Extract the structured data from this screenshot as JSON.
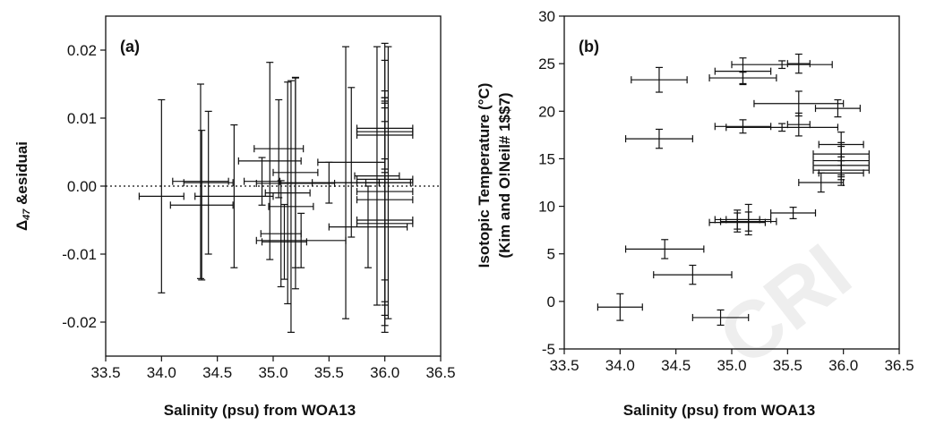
{
  "watermark": "CRI",
  "chart_data": [
    {
      "type": "scatter",
      "panel_label": "(a)",
      "xlabel": "Salinity (psu) from WOA13",
      "ylabel_symbol": "Δ",
      "ylabel_sub": "47",
      "ylabel_rest": " &esiduai",
      "xlim": [
        33.5,
        36.5
      ],
      "ylim": [
        -0.025,
        0.025
      ],
      "xticks": [
        33.5,
        34.0,
        34.5,
        35.0,
        35.5,
        36.0,
        36.5
      ],
      "xtick_labels": [
        "33.5",
        "34.0",
        "34.5",
        "35.0",
        "35.5",
        "36.0",
        "36.5"
      ],
      "yticks": [
        0.02,
        0.01,
        0.0,
        -0.01,
        -0.02
      ],
      "ytick_labels": [
        "0.02",
        "0.01",
        "0.00",
        "-0.01",
        "-0.02"
      ],
      "zero_line": true,
      "points": [
        {
          "x": 34.0,
          "y": -0.0015,
          "xerr": 0.2,
          "yerr": 0.0142
        },
        {
          "x": 34.35,
          "y": 0.0007,
          "xerr": 0.25,
          "yerr": 0.0143
        },
        {
          "x": 34.36,
          "y": -0.0028,
          "xerr": 0.28,
          "yerr": 0.011
        },
        {
          "x": 34.42,
          "y": 0.0005,
          "xerr": 0.22,
          "yerr": 0.0105
        },
        {
          "x": 34.65,
          "y": -0.0015,
          "xerr": 0.35,
          "yerr": 0.0105
        },
        {
          "x": 34.9,
          "y": 0.0007,
          "xerr": 0.16,
          "yerr": 0.0035
        },
        {
          "x": 34.97,
          "y": 0.0037,
          "xerr": 0.28,
          "yerr": 0.0145
        },
        {
          "x": 35.05,
          "y": 0.0055,
          "xerr": 0.22,
          "yerr": 0.0072
        },
        {
          "x": 35.07,
          "y": -0.007,
          "xerr": 0.18,
          "yerr": 0.0078
        },
        {
          "x": 35.1,
          "y": -0.0082,
          "xerr": 0.2,
          "yerr": 0.0055
        },
        {
          "x": 35.13,
          "y": -0.001,
          "xerr": 0.2,
          "yerr": 0.0163
        },
        {
          "x": 35.16,
          "y": -0.003,
          "xerr": 0.2,
          "yerr": 0.0185
        },
        {
          "x": 35.2,
          "y": 0.002,
          "xerr": 0.2,
          "yerr": 0.014
        },
        {
          "x": 35.2,
          "y": 0.0004,
          "xerr": 0.35,
          "yerr": 0.0155
        },
        {
          "x": 35.25,
          "y": -0.008,
          "xerr": 0.4,
          "yerr": 0.004
        },
        {
          "x": 35.5,
          "y": 0.0005,
          "xerr": 0.45,
          "yerr": 0.003
        },
        {
          "x": 35.65,
          "y": 0.0005,
          "xerr": 0.3,
          "yerr": 0.02
        },
        {
          "x": 35.7,
          "y": 0.0035,
          "xerr": 0.3,
          "yerr": 0.011
        },
        {
          "x": 35.85,
          "y": -0.006,
          "xerr": 0.35,
          "yerr": 0.006
        },
        {
          "x": 35.93,
          "y": 0.0015,
          "xerr": 0.2,
          "yerr": 0.019
        },
        {
          "x": 36.0,
          "y": 0.008,
          "xerr": 0.25,
          "yerr": 0.006
        },
        {
          "x": 36.0,
          "y": 0.0085,
          "xerr": 0.25,
          "yerr": 0.0045
        },
        {
          "x": 36.0,
          "y": 0.0075,
          "xerr": 0.25,
          "yerr": 0.005
        },
        {
          "x": 36.0,
          "y": 0.001,
          "xerr": 0.25,
          "yerr": 0.02
        },
        {
          "x": 36.0,
          "y": 0.0005,
          "xerr": 0.25,
          "yerr": 0.018
        },
        {
          "x": 36.0,
          "y": -0.0008,
          "xerr": 0.25,
          "yerr": 0.013
        },
        {
          "x": 36.0,
          "y": -0.005,
          "xerr": 0.25,
          "yerr": 0.0165
        },
        {
          "x": 36.0,
          "y": -0.0055,
          "xerr": 0.25,
          "yerr": 0.015
        },
        {
          "x": 36.0,
          "y": -0.002,
          "xerr": 0.25,
          "yerr": 0.015
        },
        {
          "x": 36.03,
          "y": 0.0005,
          "xerr": 0.2,
          "yerr": 0.02
        }
      ]
    },
    {
      "type": "scatter",
      "panel_label": "(b)",
      "xlabel": "Salinity (psu) from WOA13",
      "ylabel_line1": "Isotopic Temperature (°C)",
      "ylabel_line2": "(Kim and O!Neil# 1$$7)",
      "xlim": [
        33.5,
        36.5
      ],
      "ylim": [
        -5,
        30
      ],
      "xticks": [
        33.5,
        34.0,
        34.5,
        35.0,
        35.5,
        36.0,
        36.5
      ],
      "xtick_labels": [
        "33.5",
        "34.0",
        "34.5",
        "35.0",
        "35.5",
        "36.0",
        "36.5"
      ],
      "yticks": [
        -5,
        0,
        5,
        10,
        15,
        20,
        25,
        30
      ],
      "ytick_labels": [
        "-5",
        "0",
        "5",
        "10",
        "15",
        "20",
        "25",
        "30"
      ],
      "points": [
        {
          "x": 34.0,
          "y": -0.6,
          "xerr": 0.2,
          "yerr": 1.4
        },
        {
          "x": 34.35,
          "y": 23.3,
          "xerr": 0.25,
          "yerr": 1.3
        },
        {
          "x": 34.35,
          "y": 17.1,
          "xerr": 0.3,
          "yerr": 1.0
        },
        {
          "x": 34.4,
          "y": 5.5,
          "xerr": 0.35,
          "yerr": 1.0
        },
        {
          "x": 34.65,
          "y": 2.8,
          "xerr": 0.35,
          "yerr": 1.0
        },
        {
          "x": 34.9,
          "y": -1.7,
          "xerr": 0.25,
          "yerr": 0.8
        },
        {
          "x": 35.05,
          "y": 8.3,
          "xerr": 0.25,
          "yerr": 1.0
        },
        {
          "x": 35.05,
          "y": 8.6,
          "xerr": 0.2,
          "yerr": 1.0
        },
        {
          "x": 35.1,
          "y": 24.2,
          "xerr": 0.25,
          "yerr": 1.4
        },
        {
          "x": 35.1,
          "y": 23.5,
          "xerr": 0.3,
          "yerr": 0.6
        },
        {
          "x": 35.1,
          "y": 18.4,
          "xerr": 0.25,
          "yerr": 0.7
        },
        {
          "x": 35.15,
          "y": 8.4,
          "xerr": 0.25,
          "yerr": 1.0
        },
        {
          "x": 35.15,
          "y": 8.6,
          "xerr": 0.2,
          "yerr": 1.6
        },
        {
          "x": 35.45,
          "y": 24.9,
          "xerr": 0.45,
          "yerr": 0.4
        },
        {
          "x": 35.45,
          "y": 18.3,
          "xerr": 0.5,
          "yerr": 0.4
        },
        {
          "x": 35.6,
          "y": 25.0,
          "xerr": 0.1,
          "yerr": 1.0
        },
        {
          "x": 35.6,
          "y": 20.8,
          "xerr": 0.4,
          "yerr": 1.3
        },
        {
          "x": 35.6,
          "y": 18.6,
          "xerr": 0.1,
          "yerr": 1.2
        },
        {
          "x": 35.55,
          "y": 9.3,
          "xerr": 0.2,
          "yerr": 0.6
        },
        {
          "x": 35.8,
          "y": 12.5,
          "xerr": 0.2,
          "yerr": 1.0
        },
        {
          "x": 35.95,
          "y": 20.3,
          "xerr": 0.2,
          "yerr": 0.9
        },
        {
          "x": 35.98,
          "y": 16.5,
          "xerr": 0.2,
          "yerr": 1.3
        },
        {
          "x": 35.98,
          "y": 15.5,
          "xerr": 0.25,
          "yerr": 1.2
        },
        {
          "x": 35.98,
          "y": 14.8,
          "xerr": 0.25,
          "yerr": 1.5
        },
        {
          "x": 35.98,
          "y": 14.3,
          "xerr": 0.25,
          "yerr": 1.2
        },
        {
          "x": 35.98,
          "y": 13.8,
          "xerr": 0.25,
          "yerr": 1.0
        },
        {
          "x": 35.98,
          "y": 13.5,
          "xerr": 0.2,
          "yerr": 1.3
        }
      ]
    }
  ]
}
